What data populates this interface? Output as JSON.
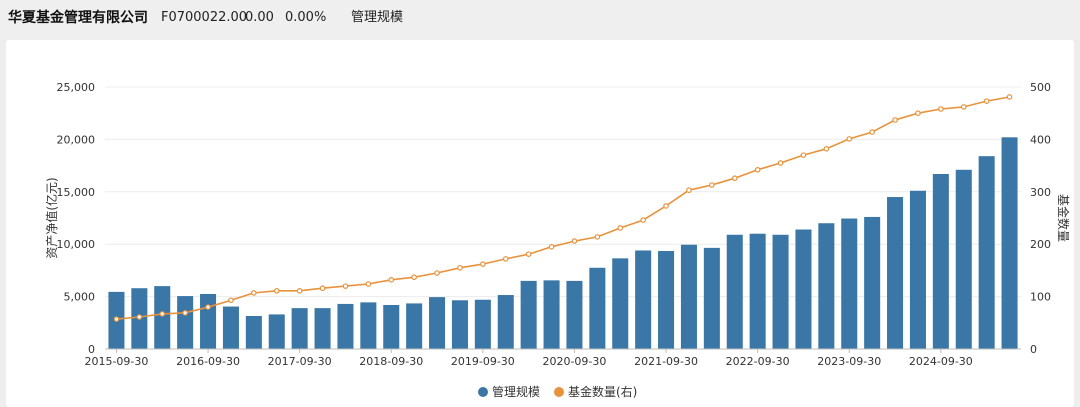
{
  "header": {
    "title": "华夏基金管理有限公司",
    "code": "F0700022.00",
    "value": "0.00",
    "change": "0.00%",
    "tab": "管理规模"
  },
  "chart_data": {
    "type": "bar",
    "x": [
      "2015-09-30",
      "2015-12-31",
      "2016-03-31",
      "2016-06-30",
      "2016-09-30",
      "2016-12-31",
      "2017-03-31",
      "2017-06-30",
      "2017-09-30",
      "2017-12-31",
      "2018-03-31",
      "2018-06-30",
      "2018-09-30",
      "2018-12-31",
      "2019-03-31",
      "2019-06-30",
      "2019-09-30",
      "2019-12-31",
      "2020-03-31",
      "2020-06-30",
      "2020-09-30",
      "2020-12-31",
      "2021-03-31",
      "2021-06-30",
      "2021-09-30",
      "2021-12-31",
      "2022-03-31",
      "2022-06-30",
      "2022-09-30",
      "2022-12-31",
      "2023-03-31",
      "2023-06-30",
      "2023-09-30",
      "2023-12-31",
      "2024-03-31",
      "2024-06-30",
      "2024-09-30",
      "2024-12-31",
      "2025-03-31",
      "2025-06-30"
    ],
    "xticks": [
      "2015-09-30",
      "2016-09-30",
      "2017-09-30",
      "2018-09-30",
      "2019-09-30",
      "2020-09-30",
      "2021-09-30",
      "2022-09-30",
      "2023-09-30",
      "2024-09-30"
    ],
    "ylabel": "资产净值(亿元)",
    "y2label": "基金数量",
    "ylim": [
      0,
      25000
    ],
    "y2lim": [
      0,
      500
    ],
    "yticks": [
      "0",
      "5,000",
      "10,000",
      "15,000",
      "20,000",
      "25,000"
    ],
    "y2ticks": [
      "0",
      "100",
      "200",
      "300",
      "400",
      "500"
    ],
    "grid": true,
    "legend_position": "bottom",
    "series": [
      {
        "name": "管理规模",
        "type": "bar",
        "axis": "left",
        "color": "#3a77a6",
        "values": [
          5450,
          5800,
          6000,
          5050,
          5250,
          4050,
          3150,
          3300,
          3900,
          3900,
          4300,
          4450,
          4200,
          4350,
          4950,
          4650,
          4700,
          5150,
          6500,
          6550,
          6500,
          7750,
          8650,
          9400,
          9350,
          9950,
          9650,
          10900,
          11000,
          10900,
          11400,
          12000,
          12450,
          12600,
          14500,
          15100,
          16700,
          17100,
          18400,
          20200
        ]
      },
      {
        "name": "基金数量(右)",
        "type": "line",
        "axis": "right",
        "color": "#e8923b",
        "values": [
          57,
          61,
          67,
          69,
          80,
          93,
          107,
          111,
          111,
          116,
          120,
          124,
          132,
          137,
          145,
          155,
          162,
          172,
          181,
          195,
          206,
          214,
          231,
          246,
          273,
          303,
          313,
          326,
          342,
          355,
          370,
          382,
          401,
          414,
          437,
          450,
          458,
          462,
          473,
          481
        ]
      }
    ]
  }
}
